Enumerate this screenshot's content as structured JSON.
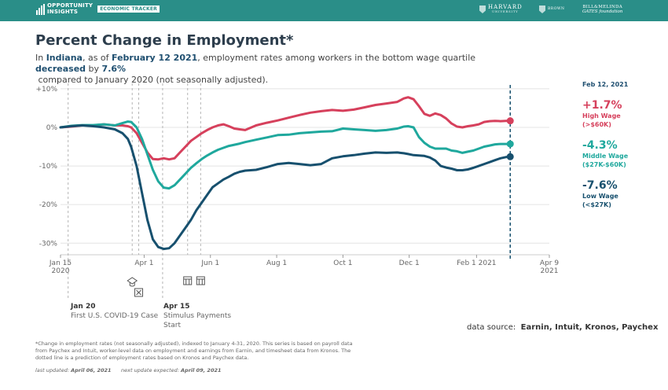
{
  "header": {
    "brand_line1": "OPPORTUNITY",
    "brand_line2": "INSIGHTS",
    "tracker_label": "ECONOMIC TRACKER",
    "partners": {
      "harvard": "HARVARD",
      "harvard_sub": "UNIVERSITY",
      "brown": "BROWN",
      "gates_line1": "BILL&MELINDA",
      "gates_line2": "GATES foundation"
    },
    "bg_color": "#2a8e88"
  },
  "page_title": "Percent Change in Employment*",
  "subtitle": {
    "prefix": "In ",
    "state": "Indiana",
    "mid1": ", as of ",
    "date": "February 12 2021",
    "mid2": ", employment rates among workers in the bottom wage quartile ",
    "direction": "decreased",
    "mid3": " by ",
    "value": "7.6%",
    "line2": "compared to January 2020 (not seasonally adjusted)."
  },
  "chart_data": {
    "type": "line",
    "xlabel": "",
    "ylabel": "",
    "y_ticks": [
      10,
      0,
      -10,
      -20,
      -30
    ],
    "y_tick_labels": [
      "+10%",
      "0%",
      "-10%",
      "-20%",
      "-30%"
    ],
    "ylim": [
      -33,
      11
    ],
    "x_ticks": [
      {
        "day": 0,
        "line1": "Jan 15",
        "line2": "2020"
      },
      {
        "day": 77,
        "line1": "Apr 1",
        "line2": ""
      },
      {
        "day": 138,
        "line1": "Jun 1",
        "line2": ""
      },
      {
        "day": 199,
        "line1": "Aug 1",
        "line2": ""
      },
      {
        "day": 260,
        "line1": "Oct 1",
        "line2": ""
      },
      {
        "day": 321,
        "line1": "Dec 1",
        "line2": ""
      },
      {
        "day": 383,
        "line1": "Feb 1 2021",
        "line2": ""
      },
      {
        "day": 450,
        "line1": "Apr 9",
        "line2": "2021"
      }
    ],
    "xlim": [
      0,
      450
    ],
    "grid": true,
    "legend_placement": "right",
    "series": [
      {
        "name": "High Wage",
        "color": "#d6405c",
        "x": [
          0,
          10,
          20,
          30,
          40,
          50,
          57,
          62,
          65,
          70,
          75,
          80,
          85,
          90,
          95,
          100,
          105,
          110,
          115,
          120,
          125,
          130,
          135,
          140,
          145,
          150,
          155,
          160,
          165,
          170,
          180,
          190,
          200,
          210,
          220,
          230,
          240,
          250,
          260,
          270,
          280,
          290,
          300,
          310,
          316,
          320,
          325,
          330,
          335,
          340,
          345,
          350,
          355,
          360,
          365,
          370,
          375,
          380,
          385,
          390,
          395,
          400,
          405,
          410,
          414
        ],
        "y": [
          0,
          0.2,
          0.5,
          0.5,
          0.8,
          0.5,
          0.5,
          0.3,
          0,
          -1.5,
          -4,
          -6.5,
          -8.2,
          -8.3,
          -8,
          -8.3,
          -8,
          -6.5,
          -5,
          -3.5,
          -2.5,
          -1.5,
          -0.7,
          0,
          0.5,
          0.8,
          0.3,
          -0.3,
          -0.5,
          -0.7,
          0.5,
          1.2,
          1.8,
          2.5,
          3.2,
          3.8,
          4.2,
          4.5,
          4.3,
          4.6,
          5.2,
          5.8,
          6.2,
          6.6,
          7.5,
          7.8,
          7.3,
          5.5,
          3.5,
          3,
          3.6,
          3.2,
          2.3,
          1,
          0.2,
          0,
          0.3,
          0.5,
          0.8,
          1.4,
          1.6,
          1.7,
          1.6,
          1.7,
          1.7
        ]
      },
      {
        "name": "Middle Wage",
        "color": "#1fa89d",
        "x": [
          0,
          10,
          20,
          30,
          40,
          50,
          57,
          62,
          65,
          70,
          75,
          80,
          85,
          90,
          95,
          100,
          105,
          110,
          115,
          120,
          125,
          130,
          135,
          140,
          145,
          150,
          155,
          160,
          165,
          170,
          180,
          190,
          200,
          210,
          220,
          230,
          240,
          250,
          260,
          270,
          280,
          290,
          300,
          310,
          316,
          320,
          325,
          330,
          335,
          340,
          345,
          350,
          355,
          360,
          365,
          370,
          375,
          380,
          385,
          390,
          395,
          400,
          405,
          410,
          414
        ],
        "y": [
          0,
          0.4,
          0.6,
          0.6,
          0.8,
          0.5,
          1.1,
          1.5,
          1.4,
          0,
          -3,
          -7,
          -11,
          -14,
          -15.6,
          -15.8,
          -15,
          -13.5,
          -12,
          -10.5,
          -9.3,
          -8.2,
          -7.3,
          -6.5,
          -5.8,
          -5.3,
          -4.8,
          -4.5,
          -4.2,
          -3.8,
          -3.2,
          -2.6,
          -2,
          -1.9,
          -1.5,
          -1.3,
          -1.1,
          -1,
          -0.3,
          -0.5,
          -0.7,
          -0.9,
          -0.7,
          -0.3,
          0.2,
          0.3,
          0,
          -2.5,
          -4,
          -5,
          -5.5,
          -5.5,
          -5.5,
          -6,
          -6.2,
          -6.6,
          -6.3,
          -6,
          -5.5,
          -5,
          -4.7,
          -4.4,
          -4.3,
          -4.3,
          -4.3
        ]
      },
      {
        "name": "Low Wage",
        "color": "#17506e",
        "x": [
          0,
          10,
          20,
          30,
          40,
          50,
          57,
          62,
          65,
          70,
          75,
          80,
          85,
          90,
          95,
          100,
          105,
          110,
          115,
          120,
          125,
          130,
          135,
          140,
          145,
          150,
          155,
          160,
          165,
          170,
          180,
          190,
          200,
          210,
          220,
          230,
          240,
          250,
          260,
          270,
          280,
          290,
          300,
          310,
          316,
          320,
          325,
          330,
          335,
          340,
          345,
          350,
          355,
          360,
          365,
          370,
          375,
          380,
          385,
          390,
          395,
          400,
          405,
          410,
          414
        ],
        "y": [
          0,
          0.3,
          0.5,
          0.3,
          0,
          -0.5,
          -1.5,
          -3,
          -5,
          -10,
          -17,
          -24,
          -29,
          -31,
          -31.5,
          -31.3,
          -30,
          -28,
          -26,
          -24,
          -21.5,
          -19.5,
          -17.5,
          -15.5,
          -14.5,
          -13.5,
          -12.8,
          -12,
          -11.5,
          -11.2,
          -11,
          -10.3,
          -9.5,
          -9.2,
          -9.5,
          -9.8,
          -9.5,
          -8,
          -7.5,
          -7.2,
          -6.8,
          -6.5,
          -6.6,
          -6.5,
          -6.7,
          -6.9,
          -7.2,
          -7.3,
          -7.4,
          -7.8,
          -8.6,
          -10,
          -10.4,
          -10.7,
          -11.1,
          -11.1,
          -10.9,
          -10.5,
          -10,
          -9.5,
          -9,
          -8.5,
          -8,
          -7.7,
          -7.6
        ]
      }
    ],
    "prediction_line_day": 414,
    "event_lines_days": [
      7,
      66,
      72,
      94,
      117,
      129
    ],
    "legend": {
      "date": "Feb 12, 2021",
      "items": [
        {
          "value": "+1.7%",
          "label1": "High Wage",
          "label2": "(>$60K)",
          "color": "#d6405c"
        },
        {
          "value": "-4.3%",
          "label1": "Middle Wage",
          "label2": "($27K-$60K)",
          "color": "#1fa89d"
        },
        {
          "value": "-7.6%",
          "label1": "Low Wage",
          "label2": "(<$27K)",
          "color": "#17506e"
        }
      ]
    },
    "annotations": [
      {
        "date": "Jan 20",
        "text": "First U.S. COVID-19 Case"
      },
      {
        "date": "Apr 15",
        "text_line1": "Stimulus Payments",
        "text_line2": "Start"
      }
    ],
    "event_icons": [
      "graduation-cap-icon",
      "closed-box-icon",
      "storefront-icon",
      "storefront-icon"
    ]
  },
  "source": {
    "label": "data source:",
    "value": "Earnin, Intuit, Kronos, Paychex"
  },
  "footnote": "*Change in employment rates (not seasonally adjusted), indexed to January 4-31, 2020. This series is based on payroll data from Paychex and Intuit, worker-level data on employment and earnings from Earnin, and timesheet data from Kronos. The dotted line is a prediction of employment rates based on Kronos and Paychex data.",
  "updated": {
    "last_label": "last updated:",
    "last_date": "April 06, 2021",
    "next_label": "next update expected:",
    "next_date": "April 09, 2021"
  }
}
